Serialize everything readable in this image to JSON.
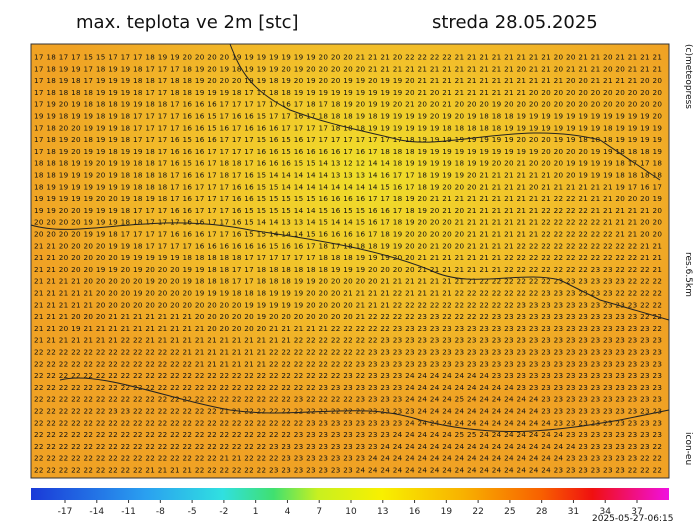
{
  "header": {
    "title": "max. teplota ve 2m [stc]",
    "date": "streda 28.05.2025"
  },
  "side": {
    "copyright": "(c)meteopress",
    "resolution": "res.6.5km",
    "model": "icon-eu"
  },
  "footer": {
    "run": "2025-05-27-06:15"
  },
  "colorbar": {
    "ticks": [
      -17,
      -14,
      -11,
      -8,
      -5,
      -2,
      1,
      4,
      7,
      10,
      13,
      16,
      19,
      22,
      25,
      28,
      31,
      34,
      37
    ]
  },
  "grid": {
    "rows": [
      "17 18 17 17 15 15 17 17 17 18 19 19 20 20 20 20 19 19 19 19 19 19 19 20 20 20 21 21 21 20 22 22 22 22 21 21 21 21 21 21 21 21 20 20 21 21 20 21 21 21 21",
      "17 18 19 19 17 18 19 19 18 17 17 17 18 19 20 19 18 19 19 19 20 19 20 20 20 20 20 21 21 21 21 21 21 21 21 21 21 21 21 20 21 21 20 21 21 21 20 20 21 21 21",
      "17 18 19 18 17 19 19 19 18 18 17 18 18 19 20 20 20 19 19 18 19 20 19 20 20 19 19 20 19 19 20 21 21 21 21 21 21 21 21 21 21 21 21 20 20 21 21 21 21 20 20",
      "17 18 18 18 18 19 19 19 18 17 17 18 18 19 19 19 18 17 17 18 18 19 19 19 19 19 19 19 19 19 20 21 20 21 21 21 21 21 21 21 20 20 20 20 20 20 20 20 20 20 20",
      "17 19 20 19 18 18 18 19 19 18 18 17 16 16 16 17 17 17 17 17 16 17 18 17 18 19 20 19 19 20 21 20 20 21 20 20 20 19 20 20 20 20 20 20 20 20 20 20 20 20 20",
      "19 19 18 19 19 18 19 18 17 17 17 17 16 16 15 17 16 16 15 17 17 16 17 18 18 18 19 18 19 19 19 19 20 19 20 19 18 18 18 19 19 19 19 19 19 19 19 19 19 19 20",
      "17 18 20 20 19 19 19 18 17 17 17 17 16 16 15 16 17 16 16 16 17 17 17 17 18 18 18 19 19 19 19 19 19 18 18 18 18 18 19 19 19 19 19 19 19 19 18 19 19 19 19",
      "17 18 19 20 18 19 19 18 17 17 17 16 15 16 16 17 17 17 15 16 15 16 17 17 17 17 17 17 17 17 18 19 19 19 19 19 19 19 19 20 20 20 19 19 18 18 18 19 19 19 19",
      "17 18 19 20 19 19 18 19 19 18 17 16 16 16 17 17 17 17 16 16 15 16 16 16 16 17 16 17 18 18 18 19 19 19 19 19 19 19 19 19 19 20 20 20 20 19 19 18 18 18 19",
      "18 18 18 19 19 20 19 19 18 18 17 16 15 16 17 18 18 17 16 16 16 15 15 14 13 12 12 14 14 18 19 19 19 19 18 19 19 20 20 21 20 20 20 19 19 19 19 18 17 17 18",
      "18 18 19 19 19 20 19 18 18 18 18 17 16 16 17 18 17 16 15 14 14 14 14 14 13 13 13 14 16 17 17 18 19 19 19 20 21 21 21 21 21 21 20 20 19 19 19 18 18 18 18",
      "18 19 19 19 19 19 19 19 18 18 18 17 16 17 17 17 16 16 15 15 14 14 14 14 14 14 14 14 15 16 17 18 19 20 20 20 21 21 21 21 20 21 21 21 21 21 21 19 17 16 17",
      "19 19 19 19 19 20 20 19 18 19 18 17 16 17 17 17 16 16 15 15 15 15 15 16 16 16 16 17 17 18 19 20 21 21 21 21 21 21 21 21 21 21 22 22 21 21 21 20 20 20 19",
      "19 19 20 20 19 19 19 18 17 17 17 16 16 17 17 17 16 15 15 15 15 14 14 15 16 15 15 16 16 17 18 19 20 21 20 21 21 21 21 21 21 22 22 22 22 21 21 21 21 21 20",
      "20 20 20 20 19 19 19 18 18 17 17 17 16 16 17 17 16 15 14 14 13 13 14 15 14 14 15 16 17 18 19 20 20 20 21 21 21 21 21 21 21 22 22 22 22 22 21 21 21 20 20",
      "20 20 20 20 19 19 18 17 17 17 17 16 16 16 17 17 16 15 15 14 14 14 15 16 16 16 16 17 18 19 20 20 20 20 20 21 21 21 21 21 21 22 22 22 22 22 22 21 21 20 20",
      "21 21 20 20 20 20 19 19 18 17 17 17 17 16 16 16 16 16 16 15 16 16 17 18 17 18 18 18 19 19 20 20 21 20 20 21 21 21 21 22 22 22 22 22 22 22 22 22 22 21 21",
      "21 21 20 20 20 20 20 19 19 19 19 19 18 18 18 18 18 17 17 17 17 17 17 18 18 18 19 19 19 20 20 21 21 21 21 21 21 21 22 22 22 22 22 22 22 22 22 22 22 21 21",
      "21 21 20 20 20 19 19 20 19 20 20 20 19 19 18 18 17 17 18 18 18 18 18 18 19 19 19 20 20 20 20 21 21 21 21 21 21 21 22 22 22 22 22 22 22 23 23 22 22 22 21",
      "21 21 21 21 20 20 20 20 20 19 20 20 19 18 18 18 17 17 18 18 18 19 19 20 20 20 20 20 21 21 21 21 21 21 21 21 22 22 22 22 22 22 23 23 23 23 23 23 22 22 22",
      "21 21 21 21 21 20 20 20 19 20 20 20 20 19 19 19 18 18 18 19 19 19 20 20 20 21 21 21 21 22 21 21 21 21 22 22 22 22 22 22 22 23 23 23 23 23 23 22 22 22 22",
      "21 21 21 21 21 20 20 20 20 20 20 20 20 20 20 20 20 19 19 19 19 19 20 20 20 20 21 21 21 22 22 22 22 22 22 22 22 22 22 23 23 23 23 23 23 23 23 23 23 22 22",
      "21 21 21 20 20 20 21 21 21 21 21 21 21 20 20 20 20 20 19 20 20 20 20 20 20 20 21 22 22 22 22 23 23 22 22 22 22 23 23 23 23 23 23 23 23 23 23 23 23 22 22",
      "21 21 20 19 21 21 21 21 21 21 21 21 21 21 20 20 20 20 20 21 21 21 21 21 22 22 22 22 22 23 23 23 23 23 23 23 23 23 23 23 23 23 23 23 23 23 23 23 23 23 22",
      "21 21 21 21 21 21 21 22 22 21 21 21 21 21 21 21 21 21 21 21 21 22 22 22 22 22 22 22 23 23 23 23 23 23 23 23 23 23 23 23 23 23 23 23 23 23 23 23 23 23 23",
      "22 22 22 22 22 22 22 22 22 22 22 22 21 21 21 21 21 21 21 22 22 22 22 22 22 22 22 23 23 23 23 23 23 23 23 23 23 23 23 23 23 23 23 23 23 23 23 23 23 23 23",
      "22 22 22 22 22 22 22 22 22 22 22 22 22 21 21 21 21 21 21 22 22 22 22 22 22 22 23 23 23 23 23 23 23 23 23 23 23 23 23 23 23 23 23 23 23 23 23 23 23 23 23",
      "22 22 22 22 22 22 22 22 22 22 22 22 22 22 22 22 22 22 22 22 22 22 22 22 22 23 22 23 23 23 24 24 24 24 24 24 24 23 23 23 23 23 23 23 23 23 23 23 23 23 23",
      "22 22 22 22 22 22 22 22 22 22 22 22 22 22 22 22 22 22 22 22 22 22 22 23 23 23 23 23 23 23 24 24 24 24 24 24 24 24 24 23 23 23 23 23 23 23 23 23 23 23 23",
      "22 22 22 22 22 22 22 22 22 22 22 22 22 22 22 22 22 22 22 22 22 23 22 22 22 22 23 23 23 23 24 24 24 24 25 24 24 24 24 24 24 23 23 23 23 23 23 23 23 23 23",
      "22 22 22 22 22 22 23 23 22 22 22 22 22 22 22 21 21 22 22 22 22 22 22 22 22 22 22 23 23 23 23 24 24 24 24 24 24 24 24 24 24 23 23 23 23 23 23 23 23 23 23",
      "22 22 22 22 22 22 22 22 22 22 22 22 22 22 22 22 22 22 22 22 22 22 23 23 23 23 23 23 23 23 24 24 24 24 24 24 24 24 24 24 24 24 23 23 23 23 23 23 23 23 23",
      "22 22 22 22 22 22 22 22 22 22 22 22 22 22 22 22 22 22 22 22 22 23 23 23 23 23 23 23 23 24 24 24 24 24 25 25 24 24 24 24 24 24 24 23 23 23 23 23 23 23 23",
      "22 22 22 22 22 22 22 22 22 22 22 22 22 22 22 22 22 22 22 23 23 23 23 23 23 23 23 23 24 24 24 24 24 24 24 24 24 24 24 24 24 24 24 24 23 23 23 23 23 23 22",
      "22 22 22 22 22 22 22 22 22 22 22 22 22 22 22 21 21 22 22 22 23 23 23 23 23 23 23 24 24 24 24 24 24 24 24 24 24 24 24 24 24 24 24 23 23 23 23 23 23 22 22",
      "22 22 22 22 22 22 22 22 22 21 21 21 21 22 22 22 22 22 22 23 23 23 23 23 23 23 24 24 24 24 24 24 24 24 24 24 24 24 24 24 24 24 23 23 23 23 23 23 22 22 22"
    ]
  }
}
